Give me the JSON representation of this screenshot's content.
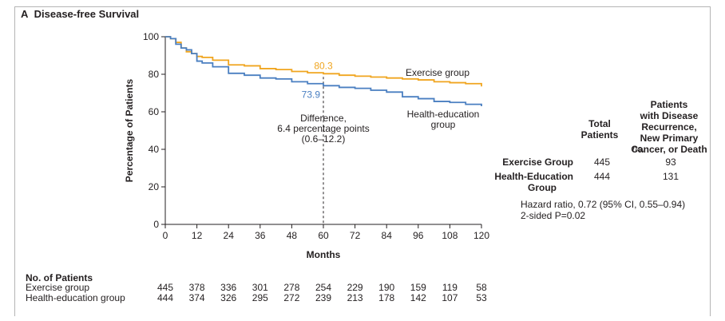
{
  "panel": {
    "letter": "A",
    "title": "Disease-free Survival"
  },
  "chart_data": {
    "type": "line",
    "xlabel": "Months",
    "ylabel": "Percentage of Patients",
    "xlim": [
      0,
      120
    ],
    "ylim": [
      0,
      100
    ],
    "xticks": [
      0,
      12,
      24,
      36,
      48,
      60,
      72,
      84,
      96,
      108,
      120
    ],
    "yticks": [
      0,
      20,
      40,
      60,
      80,
      100
    ],
    "grid": false,
    "series": [
      {
        "name": "Exercise group",
        "color": "#f0a51f",
        "x": [
          0,
          2,
          4,
          6,
          8,
          10,
          12,
          14,
          18,
          24,
          30,
          36,
          42,
          48,
          54,
          60,
          66,
          72,
          78,
          84,
          90,
          96,
          102,
          108,
          114,
          120
        ],
        "y": [
          100,
          99,
          97,
          94,
          92,
          91,
          89.5,
          89,
          87.5,
          85,
          84.5,
          83,
          82.5,
          81.5,
          80.8,
          80.3,
          79.5,
          79,
          78.5,
          78,
          77.5,
          77,
          76,
          75.5,
          75,
          73.5
        ]
      },
      {
        "name": "Health-education group",
        "color": "#4a7fc1",
        "x": [
          0,
          2,
          4,
          6,
          8,
          10,
          12,
          14,
          18,
          24,
          30,
          36,
          42,
          48,
          54,
          60,
          66,
          72,
          78,
          84,
          90,
          96,
          102,
          108,
          114,
          120
        ],
        "y": [
          100,
          99,
          96,
          94,
          93,
          91,
          87,
          86,
          84,
          80.5,
          79.5,
          78,
          77.5,
          76,
          75,
          73.9,
          73,
          72.5,
          71.5,
          70.5,
          68,
          67,
          65.5,
          65,
          64,
          63
        ]
      }
    ],
    "annotations": [
      {
        "text": "80.3",
        "x": 60,
        "y": 80.3,
        "color": "#f0a51f"
      },
      {
        "text": "73.9",
        "x": 60,
        "y": 73.9,
        "color": "#4a7fc1"
      },
      {
        "text_lines": [
          "Difference,",
          "6.4 percentage points",
          "(0.6–12.2)"
        ],
        "x": 60
      }
    ],
    "series_labels": [
      {
        "text_lines": [
          "Exercise group"
        ]
      },
      {
        "text_lines": [
          "Health-education",
          "group"
        ]
      }
    ]
  },
  "table": {
    "col_total": [
      "Total",
      "Patients"
    ],
    "col_events": [
      "Patients",
      "with Disease",
      "Recurrence,",
      "New Primary",
      "Cancer, or Death"
    ],
    "unit": "no.",
    "rows": [
      {
        "label_lines": [
          "Exercise Group"
        ],
        "total": "445",
        "events": "93"
      },
      {
        "label_lines": [
          "Health-Education",
          "Group"
        ],
        "total": "444",
        "events": "131"
      }
    ],
    "hazard_ratio": "Hazard ratio, 0.72 (95% CI, 0.55–0.94)",
    "p_value": "2-sided P=0.02"
  },
  "at_risk": {
    "title": "No. of Patients",
    "rows": [
      {
        "label": "Exercise group",
        "values": [
          "445",
          "378",
          "336",
          "301",
          "278",
          "254",
          "229",
          "190",
          "159",
          "119",
          "58"
        ]
      },
      {
        "label": "Health-education group",
        "values": [
          "444",
          "374",
          "326",
          "295",
          "272",
          "239",
          "213",
          "178",
          "142",
          "107",
          "53"
        ]
      }
    ]
  }
}
